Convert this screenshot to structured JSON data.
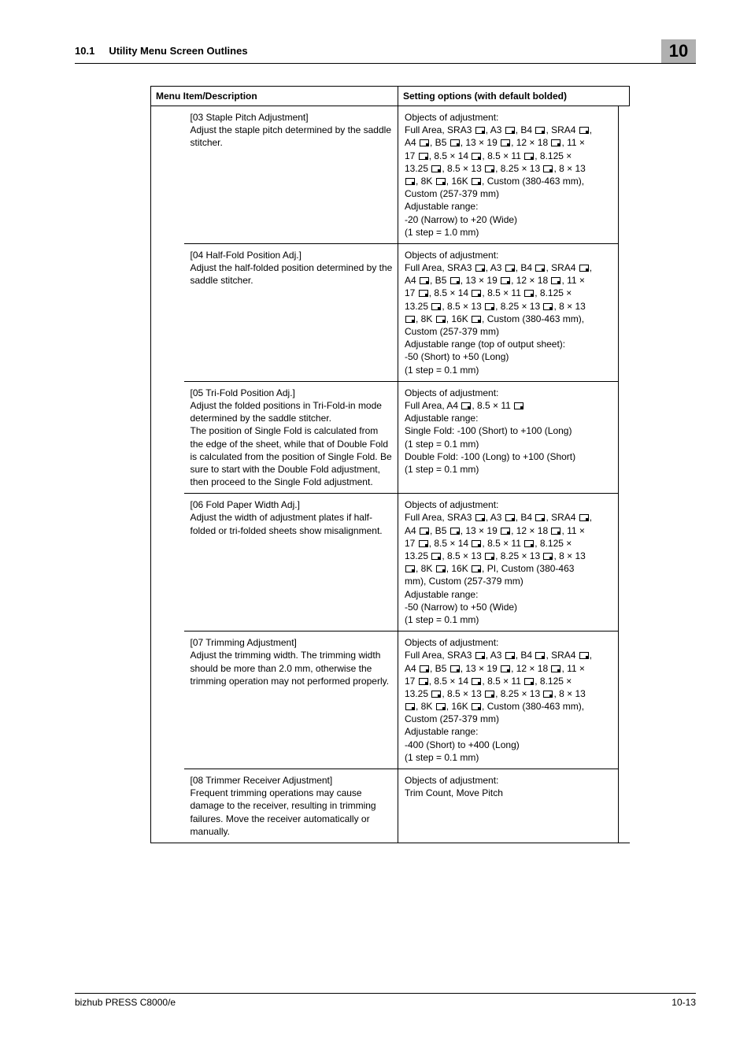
{
  "header": {
    "section_num": "10.1",
    "section_title": "Utility Menu Screen Outlines",
    "chapter": "10"
  },
  "table": {
    "col_desc": "Menu Item/Description",
    "col_sett": "Setting options (with default bolded)"
  },
  "rows": [
    {
      "title": "[03 Staple Pitch Adjustment]",
      "desc": "Adjust the staple pitch determined by the saddle stitcher.",
      "s1": "Objects of adjustment:",
      "s2a": "Full Area, SRA3 ",
      "s2b": ", A3 ",
      "s2c": ", B4 ",
      "s2d": ", SRA4 ",
      "s2e": ",",
      "s3a": "A4 ",
      "s3b": ", B5 ",
      "s3c": ", 13 × 19 ",
      "s3d": ", 12 × 18 ",
      "s3e": ", 11 ×",
      "s4a": "17 ",
      "s4b": ", 8.5 × 14 ",
      "s4c": ", 8.5 × 11 ",
      "s4d": ", 8.125 ×",
      "s5a": "13.25 ",
      "s5b": ", 8.5 × 13 ",
      "s5c": ", 8.25 × 13 ",
      "s5d": ", 8 × 13",
      "s6a": "",
      "s6b": ", 8K ",
      "s6c": ", 16K ",
      "s6d": ", Custom (380-463 mm),",
      "s7": "Custom (257-379 mm)",
      "s8": "Adjustable range:",
      "s9": "-20 (Narrow) to +20 (Wide)",
      "s10": "(1 step = 1.0 mm)"
    },
    {
      "title": "[04 Half-Fold Position Adj.]",
      "desc": "Adjust the half-folded position determined by the saddle stitcher.",
      "s1": "Objects of adjustment:",
      "s2a": "Full Area, SRA3 ",
      "s2b": ", A3 ",
      "s2c": ", B4 ",
      "s2d": ", SRA4 ",
      "s2e": ",",
      "s3a": "A4 ",
      "s3b": ", B5 ",
      "s3c": ", 13 × 19 ",
      "s3d": ", 12 × 18 ",
      "s3e": ", 11 ×",
      "s4a": "17 ",
      "s4b": ", 8.5 × 14 ",
      "s4c": ", 8.5 × 11 ",
      "s4d": ", 8.125 ×",
      "s5a": "13.25 ",
      "s5b": ", 8.5 × 13 ",
      "s5c": ", 8.25 × 13 ",
      "s5d": ", 8 × 13",
      "s6a": "",
      "s6b": ", 8K ",
      "s6c": ", 16K ",
      "s6d": ", Custom (380-463 mm),",
      "s7": "Custom (257-379 mm)",
      "s8": "Adjustable range (top of output sheet):",
      "s9": "-50 (Short) to +50 (Long)",
      "s10": "(1 step = 0.1 mm)"
    },
    {
      "title": "[05 Tri-Fold Position Adj.]",
      "desc": "Adjust the folded positions in Tri-Fold-in mode determined by the saddle stitcher.\nThe position of Single Fold is calculated from the edge of the sheet, while that of Double Fold is calculated from the position of Single Fold. Be sure to start with the Double Fold adjustment, then proceed to the Single Fold adjustment.",
      "t1": "Objects of adjustment:",
      "t2a": "Full Area, A4 ",
      "t2b": ", 8.5 × 11 ",
      "t3": "Adjustable range:",
      "t4": "Single Fold: -100 (Short) to +100 (Long)",
      "t5": "(1 step = 0.1 mm)",
      "t6": "Double Fold: -100 (Long) to +100 (Short)",
      "t7": "(1 step = 0.1 mm)"
    },
    {
      "title": "[06 Fold Paper Width Adj.]",
      "desc": "Adjust the width of adjustment plates if half-folded or tri-folded sheets show misalignment.",
      "s1": "Objects of adjustment:",
      "s2a": "Full Area, SRA3 ",
      "s2b": ", A3 ",
      "s2c": ", B4 ",
      "s2d": ", SRA4 ",
      "s2e": ",",
      "s3a": "A4 ",
      "s3b": ", B5 ",
      "s3c": ", 13 × 19 ",
      "s3d": ", 12 × 18 ",
      "s3e": ", 11 ×",
      "s4a": "17 ",
      "s4b": ", 8.5 × 14 ",
      "s4c": ", 8.5 × 11 ",
      "s4d": ", 8.125 ×",
      "s5a": "13.25 ",
      "s5b": ", 8.5 × 13 ",
      "s5c": ", 8.25 × 13 ",
      "s5d": ", 8 × 13",
      "s6a": "",
      "s6b": ", 8K ",
      "s6c": ", 16K ",
      "s6d": ", PI, Custom (380-463",
      "s7": "mm), Custom (257-379 mm)",
      "s8": "Adjustable range:",
      "s9": "-50 (Narrow) to +50 (Wide)",
      "s10": "(1 step = 0.1 mm)"
    },
    {
      "title": "[07 Trimming Adjustment]",
      "desc": "Adjust the trimming width. The trimming width should be more than 2.0 mm, otherwise the trimming operation may not performed properly.",
      "s1": "Objects of adjustment:",
      "s2a": "Full Area, SRA3 ",
      "s2b": ", A3 ",
      "s2c": ", B4 ",
      "s2d": ", SRA4 ",
      "s2e": ",",
      "s3a": "A4 ",
      "s3b": ", B5 ",
      "s3c": ", 13 × 19 ",
      "s3d": ", 12 × 18 ",
      "s3e": ", 11 ×",
      "s4a": "17 ",
      "s4b": ", 8.5 × 14 ",
      "s4c": ", 8.5 × 11 ",
      "s4d": ", 8.125 ×",
      "s5a": "13.25 ",
      "s5b": ", 8.5 × 13 ",
      "s5c": ", 8.25 × 13 ",
      "s5d": ", 8 × 13",
      "s6a": "",
      "s6b": ", 8K ",
      "s6c": ", 16K ",
      "s6d": ", Custom (380-463 mm),",
      "s7": "Custom (257-379 mm)",
      "s8": "Adjustable range:",
      "s9": "-400 (Short) to +400 (Long)",
      "s10": "(1 step = 0.1 mm)"
    },
    {
      "title": "[08 Trimmer Receiver Adjustment]",
      "desc": "Frequent trimming operations may cause damage to the receiver, resulting in trimming failures. Move the receiver automatically or manually.",
      "u1": "Objects of adjustment:",
      "u2": "Trim Count, Move Pitch"
    }
  ],
  "footer": {
    "left": "bizhub PRESS C8000/e",
    "right": "10-13"
  }
}
